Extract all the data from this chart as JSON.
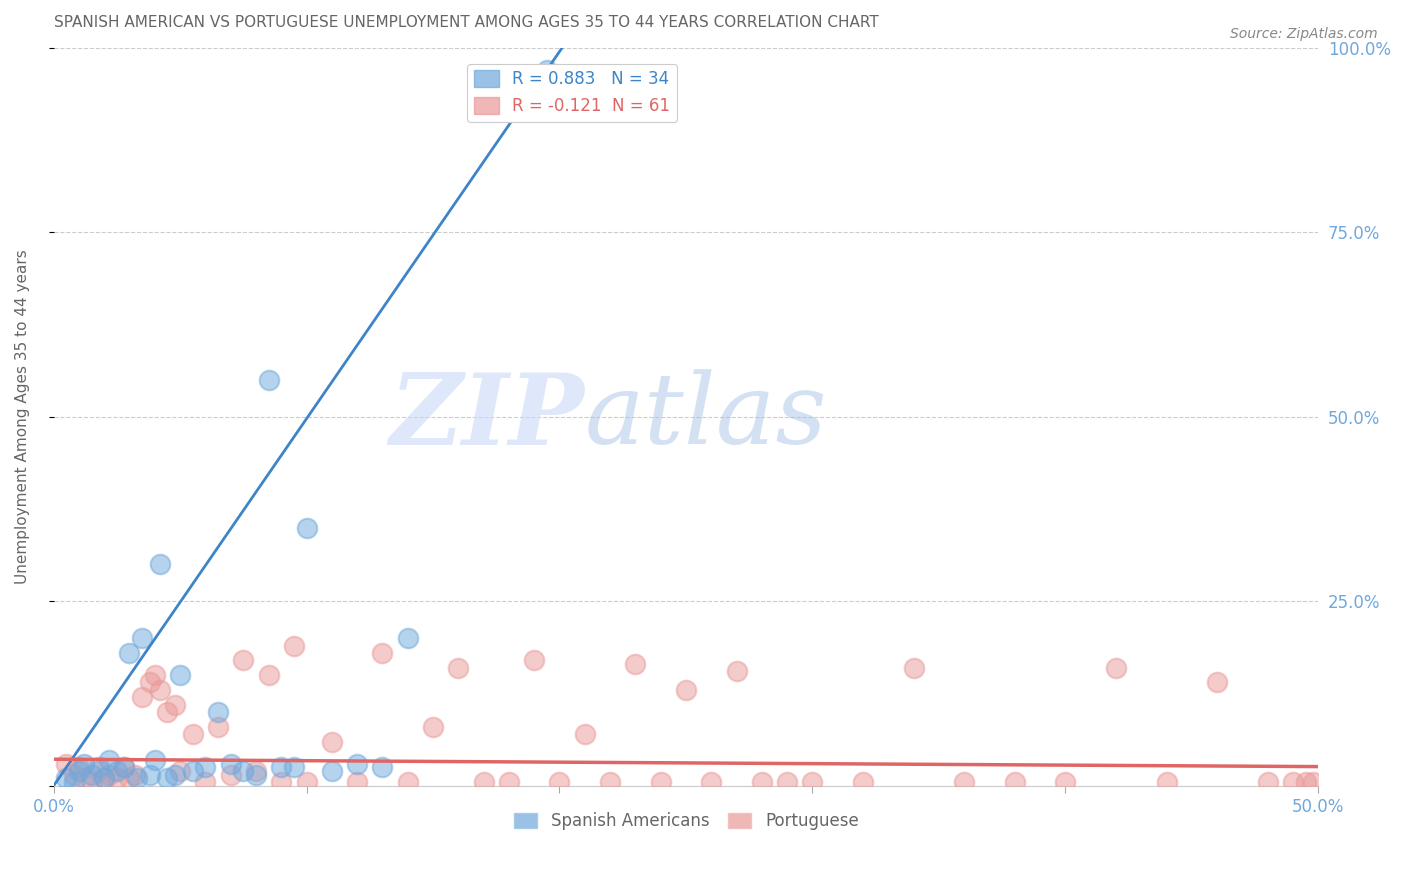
{
  "title": "SPANISH AMERICAN VS PORTUGUESE UNEMPLOYMENT AMONG AGES 35 TO 44 YEARS CORRELATION CHART",
  "source": "Source: ZipAtlas.com",
  "ylabel": "Unemployment Among Ages 35 to 44 years",
  "xlim": [
    0.0,
    0.5
  ],
  "ylim": [
    0.0,
    1.0
  ],
  "blue_color": "#6fa8dc",
  "pink_color": "#ea9999",
  "blue_line_color": "#3d85c8",
  "pink_line_color": "#e06666",
  "watermark_zip": "ZIP",
  "watermark_atlas": "atlas",
  "blue_scatter_x": [
    0.005,
    0.008,
    0.01,
    0.012,
    0.015,
    0.018,
    0.02,
    0.022,
    0.025,
    0.028,
    0.03,
    0.033,
    0.035,
    0.038,
    0.04,
    0.042,
    0.045,
    0.048,
    0.05,
    0.055,
    0.06,
    0.065,
    0.07,
    0.075,
    0.08,
    0.085,
    0.09,
    0.095,
    0.1,
    0.11,
    0.12,
    0.13,
    0.14,
    0.195
  ],
  "blue_scatter_y": [
    0.01,
    0.005,
    0.02,
    0.03,
    0.015,
    0.025,
    0.01,
    0.035,
    0.02,
    0.025,
    0.18,
    0.01,
    0.2,
    0.015,
    0.035,
    0.3,
    0.01,
    0.015,
    0.15,
    0.02,
    0.025,
    0.1,
    0.03,
    0.02,
    0.015,
    0.55,
    0.025,
    0.025,
    0.35,
    0.02,
    0.03,
    0.025,
    0.2,
    0.97
  ],
  "pink_scatter_x": [
    0.005,
    0.008,
    0.01,
    0.012,
    0.015,
    0.018,
    0.02,
    0.022,
    0.025,
    0.028,
    0.03,
    0.032,
    0.035,
    0.038,
    0.04,
    0.042,
    0.045,
    0.048,
    0.05,
    0.055,
    0.06,
    0.065,
    0.07,
    0.075,
    0.08,
    0.085,
    0.09,
    0.095,
    0.1,
    0.11,
    0.12,
    0.13,
    0.14,
    0.15,
    0.16,
    0.17,
    0.18,
    0.19,
    0.2,
    0.21,
    0.22,
    0.23,
    0.24,
    0.25,
    0.26,
    0.27,
    0.28,
    0.29,
    0.3,
    0.32,
    0.34,
    0.36,
    0.38,
    0.4,
    0.42,
    0.44,
    0.46,
    0.48,
    0.49,
    0.495,
    0.498
  ],
  "pink_scatter_y": [
    0.03,
    0.015,
    0.025,
    0.01,
    0.005,
    0.02,
    0.01,
    0.015,
    0.01,
    0.025,
    0.01,
    0.015,
    0.12,
    0.14,
    0.15,
    0.13,
    0.1,
    0.11,
    0.02,
    0.07,
    0.005,
    0.08,
    0.015,
    0.17,
    0.02,
    0.15,
    0.005,
    0.19,
    0.005,
    0.06,
    0.005,
    0.18,
    0.005,
    0.08,
    0.16,
    0.005,
    0.005,
    0.17,
    0.005,
    0.07,
    0.005,
    0.165,
    0.005,
    0.13,
    0.005,
    0.155,
    0.005,
    0.005,
    0.005,
    0.005,
    0.16,
    0.005,
    0.005,
    0.005,
    0.16,
    0.005,
    0.14,
    0.005,
    0.005,
    0.005,
    0.005
  ],
  "grid_color": "#cccccc",
  "background_color": "#ffffff",
  "title_color": "#666666",
  "axis_color": "#6fa8dc",
  "legend_blue_label": "R = 0.883   N = 34",
  "legend_pink_label": "R = -0.121  N = 61",
  "bottom_legend_1": "Spanish Americans",
  "bottom_legend_2": "Portuguese"
}
